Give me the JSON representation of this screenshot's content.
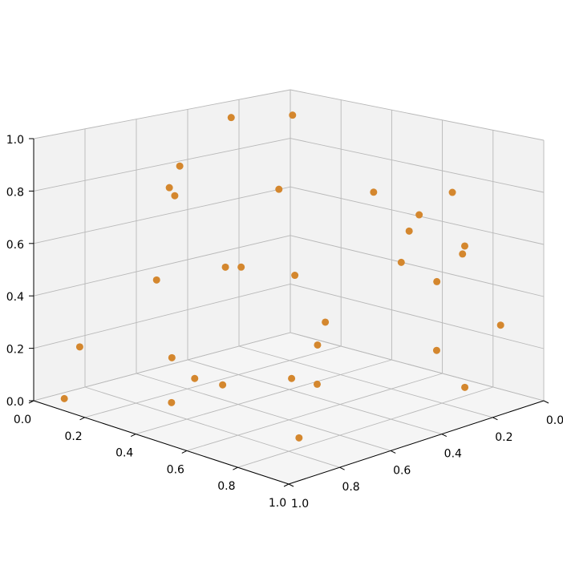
{
  "chart_data": {
    "type": "scatter3d",
    "color": "#d4872e",
    "grid": true,
    "x": [
      0.04,
      0.11,
      0.09,
      0.17,
      0.03,
      0.48,
      0.47,
      0.72,
      0.71,
      0.59,
      0.95,
      0.74,
      0.72,
      0.84,
      0.87,
      0.99,
      0.9,
      0.21,
      0.32,
      0.36,
      0.56,
      0.56,
      0.77,
      0.33,
      0.16,
      0.14,
      0.09,
      0.11,
      0.17,
      0.32,
      0.42,
      0.47
    ],
    "y": [
      0.27,
      0.1,
      0.52,
      0.64,
      0.48,
      0.52,
      0.14,
      0.08,
      0.2,
      0.12,
      0.26,
      0.06,
      0.28,
      0.26,
      0.04,
      0.41,
      0.21,
      0.19,
      0.18,
      0.25,
      0.55,
      0.45,
      0.73,
      0.58,
      0.35,
      0.66,
      0.91,
      0.99,
      0.63,
      0.69,
      0.88,
      0.73
    ],
    "z": [
      0.95,
      0.94,
      0.82,
      0.78,
      0.68,
      0.82,
      0.72,
      0.76,
      0.7,
      0.59,
      0.65,
      0.52,
      0.54,
      0.49,
      0.27,
      0.31,
      0.09,
      0.34,
      0.18,
      0.12,
      0.13,
      0.08,
      0.02,
      0.5,
      0.4,
      0.42,
      0.21,
      0.04,
      0.12,
      0.1,
      0.09,
      0.13
    ],
    "xlim": [
      0,
      1
    ],
    "ylim": [
      0,
      1
    ],
    "zlim": [
      0,
      1
    ],
    "xticks": [
      {
        "value": 0,
        "label": "0.0"
      },
      0.2,
      0.4,
      0.6,
      0.8,
      {
        "value": 1,
        "label": "1.0"
      }
    ],
    "yticks": [
      {
        "value": 0,
        "label": "0.0"
      },
      0.2,
      0.4,
      0.6,
      0.8,
      {
        "value": 1,
        "label": "1.0"
      }
    ],
    "zticks": [
      {
        "value": 0,
        "label": "0.0"
      },
      0.2,
      0.4,
      0.6,
      0.8,
      {
        "value": 1,
        "label": "1.0"
      }
    ]
  }
}
